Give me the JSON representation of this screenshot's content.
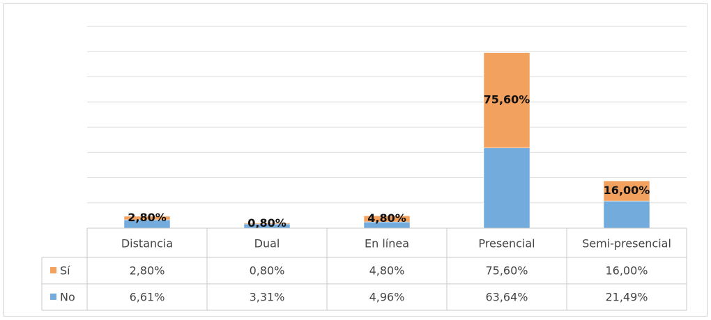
{
  "chart_data": {
    "type": "bar",
    "stacked": true,
    "categories": [
      "Distancia",
      "Dual",
      "En línea",
      "Presencial",
      "Semi-presencial"
    ],
    "series": [
      {
        "name": "No",
        "color": "#72abdc",
        "values": [
          6.61,
          3.31,
          4.96,
          63.64,
          21.49
        ],
        "value_labels": [
          "6,61%",
          "3,31%",
          "4,96%",
          "63,64%",
          "21,49%"
        ]
      },
      {
        "name": "Sí",
        "color": "#f2a15e",
        "values": [
          2.8,
          0.8,
          4.8,
          75.6,
          16.0
        ],
        "value_labels": [
          "2,80%",
          "0,80%",
          "4,80%",
          "75,60%",
          "16,00%"
        ]
      }
    ],
    "data_labels_series": "Sí",
    "ylim": [
      0,
      160
    ],
    "yticks": [
      0,
      20,
      40,
      60,
      80,
      100,
      120,
      140,
      160
    ],
    "grid": true,
    "data_table": true
  }
}
